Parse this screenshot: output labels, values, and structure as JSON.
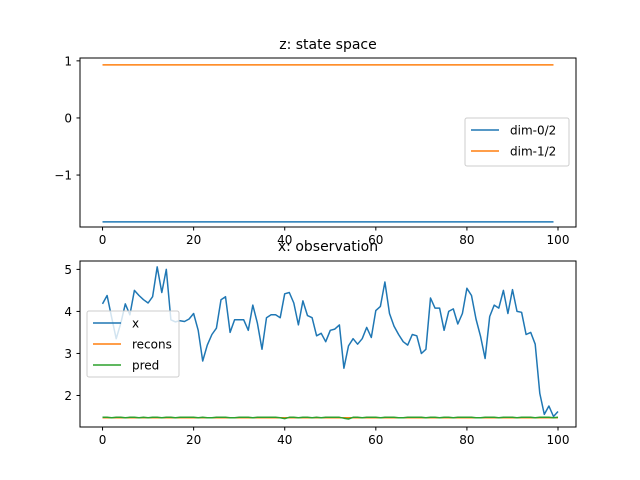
{
  "chart_data": [
    {
      "type": "line",
      "title": "z: state space",
      "xlabel": "",
      "ylabel": "",
      "xlim": [
        -4.95,
        103.95
      ],
      "ylim": [
        -1.91,
        1.05
      ],
      "xticks": [
        0,
        20,
        40,
        60,
        80,
        100
      ],
      "xtick_labels": [
        "0",
        "20",
        "40",
        "60",
        "80",
        "100"
      ],
      "yticks": [
        1,
        0,
        -1
      ],
      "ytick_labels": [
        "1",
        "0",
        "−1"
      ],
      "grid": false,
      "legend_position": "center-right",
      "series": [
        {
          "name": "dim-0/2",
          "color": "#1f77b4",
          "x_range": [
            0,
            99
          ],
          "constant": -1.82
        },
        {
          "name": "dim-1/2",
          "color": "#ff7f0e",
          "x_range": [
            0,
            99
          ],
          "constant": 0.93
        }
      ]
    },
    {
      "type": "line",
      "title": "x: observation",
      "xlabel": "",
      "ylabel": "",
      "xlim": [
        -4.95,
        103.95
      ],
      "ylim": [
        1.25,
        5.2
      ],
      "xticks": [
        0,
        20,
        40,
        60,
        80,
        100
      ],
      "xtick_labels": [
        "0",
        "20",
        "40",
        "60",
        "80",
        "100"
      ],
      "yticks": [
        5,
        4,
        3,
        2
      ],
      "ytick_labels": [
        "5",
        "4",
        "3",
        "2"
      ],
      "grid": false,
      "legend_position": "center-left",
      "series": [
        {
          "name": "x",
          "color": "#1f77b4",
          "values": [
            4.18,
            4.38,
            3.85,
            3.35,
            3.72,
            4.18,
            3.92,
            4.5,
            4.38,
            4.28,
            4.2,
            4.35,
            5.06,
            4.45,
            5.0,
            3.8,
            3.75,
            3.78,
            3.76,
            3.82,
            3.95,
            3.55,
            2.82,
            3.2,
            3.45,
            3.6,
            4.28,
            4.35,
            3.5,
            3.8,
            3.8,
            3.8,
            3.55,
            4.15,
            3.72,
            3.1,
            3.85,
            3.92,
            3.92,
            3.85,
            4.42,
            4.45,
            4.2,
            3.68,
            4.25,
            3.9,
            3.85,
            3.42,
            3.48,
            3.28,
            3.55,
            3.58,
            3.68,
            2.65,
            3.18,
            3.35,
            3.22,
            3.35,
            3.62,
            3.38,
            4.02,
            4.12,
            4.7,
            3.95,
            3.65,
            3.45,
            3.28,
            3.2,
            3.45,
            3.42,
            3.0,
            3.1,
            4.32,
            4.08,
            4.08,
            3.55,
            4.0,
            4.06,
            3.7,
            3.95,
            4.55,
            4.38,
            3.82,
            3.4,
            2.88,
            3.88,
            4.15,
            4.08,
            4.5,
            3.95,
            4.52,
            4.0,
            3.98,
            3.45,
            3.5,
            3.22,
            2.05,
            1.55,
            1.75,
            1.5,
            1.62
          ]
        },
        {
          "name": "recons",
          "color": "#ff7f0e",
          "constant": 1.47,
          "x_range": [
            0,
            100
          ]
        },
        {
          "name": "pred",
          "color": "#2ca02c",
          "values": [
            1.48,
            1.48,
            1.47,
            1.48,
            1.48,
            1.47,
            1.48,
            1.48,
            1.47,
            1.48,
            1.47,
            1.48,
            1.48,
            1.47,
            1.48,
            1.48,
            1.47,
            1.48,
            1.48,
            1.48,
            1.48,
            1.47,
            1.48,
            1.47,
            1.47,
            1.48,
            1.48,
            1.48,
            1.47,
            1.47,
            1.48,
            1.48,
            1.48,
            1.47,
            1.48,
            1.48,
            1.48,
            1.48,
            1.48,
            1.47,
            1.45,
            1.48,
            1.48,
            1.47,
            1.48,
            1.48,
            1.47,
            1.48,
            1.47,
            1.48,
            1.48,
            1.48,
            1.48,
            1.46,
            1.44,
            1.48,
            1.48,
            1.47,
            1.48,
            1.48,
            1.48,
            1.47,
            1.48,
            1.48,
            1.48,
            1.47,
            1.47,
            1.48,
            1.48,
            1.48,
            1.48,
            1.47,
            1.48,
            1.48,
            1.47,
            1.48,
            1.48,
            1.47,
            1.48,
            1.48,
            1.48,
            1.48,
            1.47,
            1.47,
            1.48,
            1.48,
            1.48,
            1.47,
            1.48,
            1.48,
            1.48,
            1.47,
            1.48,
            1.48,
            1.48,
            1.47,
            1.48,
            1.48,
            1.48,
            1.47,
            1.48
          ]
        }
      ]
    }
  ]
}
